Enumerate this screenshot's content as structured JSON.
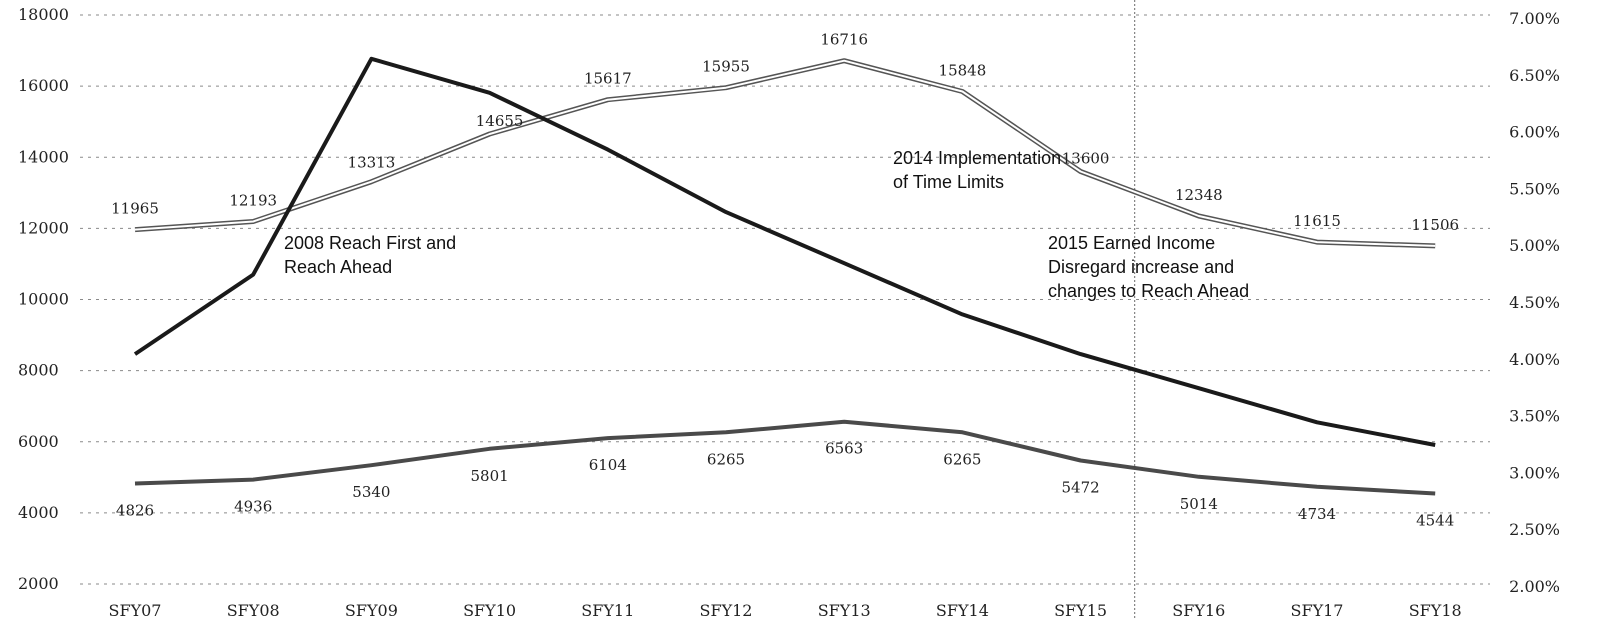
{
  "chart_data": {
    "type": "line",
    "categories": [
      "SFY07",
      "SFY08",
      "SFY09",
      "SFY10",
      "SFY11",
      "SFY12",
      "SFY13",
      "SFY14",
      "SFY15",
      "SFY16",
      "SFY17",
      "SFY18"
    ],
    "y_left": {
      "ticks": [
        "18000",
        "16000",
        "14000",
        "12000",
        "10000",
        "8000",
        "6000",
        "4000",
        "2000"
      ],
      "range": [
        2000,
        18000
      ]
    },
    "y_right": {
      "ticks": [
        "7.00%",
        "6.50%",
        "6.00%",
        "5.50%",
        "5.00%",
        "4.50%",
        "4.00%",
        "3.50%",
        "3.00%",
        "2.50%",
        "2.00%"
      ],
      "range": [
        2.0,
        7.0
      ]
    },
    "grid": "horizontal dashed",
    "series": [
      {
        "axis": "left",
        "style": "double-line",
        "color": "#555555",
        "values": [
          11965,
          12193,
          13313,
          14655,
          15617,
          15955,
          16716,
          15848,
          13600,
          12348,
          11615,
          11506
        ],
        "labels": [
          "11965",
          "12193",
          "13313",
          "14655",
          "15617",
          "15955",
          "16716",
          "15848",
          "13600",
          "12348",
          "11615",
          "11506"
        ]
      },
      {
        "axis": "left",
        "style": "solid-gray",
        "color": "#4a4a4a",
        "values": [
          4826,
          4936,
          5340,
          5801,
          6104,
          6265,
          6563,
          6265,
          5472,
          5014,
          4734,
          4544
        ],
        "labels": [
          "4826",
          "4936",
          "5340",
          "5801",
          "6104",
          "6265",
          "6563",
          "6265",
          "5472",
          "5014",
          "4734",
          "4544"
        ]
      },
      {
        "axis": "right",
        "style": "solid-black",
        "color": "#1a1a1a",
        "values": [
          4.05,
          4.75,
          6.65,
          6.35,
          5.85,
          5.3,
          4.85,
          4.4,
          4.05,
          3.75,
          3.45,
          3.25
        ]
      }
    ],
    "annotations": [
      {
        "lines": [
          "2008 Reach First and",
          "Reach Ahead"
        ]
      },
      {
        "lines": [
          "2014 Implementation",
          "of  Time Limits"
        ]
      },
      {
        "lines": [
          "2015 Earned Income",
          "Disregard increase and",
          "changes to Reach Ahead"
        ]
      }
    ]
  }
}
